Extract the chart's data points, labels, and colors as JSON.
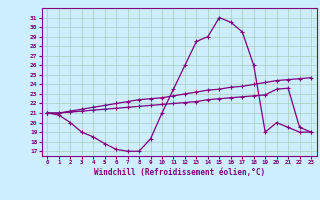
{
  "title": "",
  "xlabel": "Windchill (Refroidissement éolien,°C)",
  "ylabel": "",
  "bg_color": "#cceeff",
  "grid_color": "#aaccbb",
  "line_color": "#800080",
  "x_ticks": [
    0,
    1,
    2,
    3,
    4,
    5,
    6,
    7,
    8,
    9,
    10,
    11,
    12,
    13,
    14,
    15,
    16,
    17,
    18,
    19,
    20,
    21,
    22,
    23
  ],
  "y_ticks": [
    17,
    18,
    19,
    20,
    21,
    22,
    23,
    24,
    25,
    26,
    27,
    28,
    29,
    30,
    31
  ],
  "ylim": [
    16.5,
    32.0
  ],
  "xlim": [
    -0.5,
    23.5
  ],
  "line1_y": [
    21.0,
    20.8,
    20.0,
    19.0,
    18.5,
    17.8,
    17.2,
    17.0,
    17.0,
    18.3,
    21.0,
    23.5,
    26.0,
    28.5,
    29.0,
    31.0,
    30.5,
    29.5,
    26.0,
    19.0,
    20.0,
    19.5,
    19.0,
    19.0
  ],
  "line2_y": [
    21.0,
    21.0,
    21.1,
    21.2,
    21.3,
    21.4,
    21.5,
    21.6,
    21.7,
    21.8,
    21.9,
    22.0,
    22.1,
    22.2,
    22.4,
    22.5,
    22.6,
    22.7,
    22.8,
    22.9,
    23.5,
    23.6,
    19.5,
    19.0
  ],
  "line3_y": [
    21.0,
    21.0,
    21.2,
    21.4,
    21.6,
    21.8,
    22.0,
    22.2,
    22.4,
    22.5,
    22.6,
    22.8,
    23.0,
    23.2,
    23.4,
    23.5,
    23.7,
    23.8,
    24.0,
    24.2,
    24.4,
    24.5,
    24.6,
    24.7
  ]
}
